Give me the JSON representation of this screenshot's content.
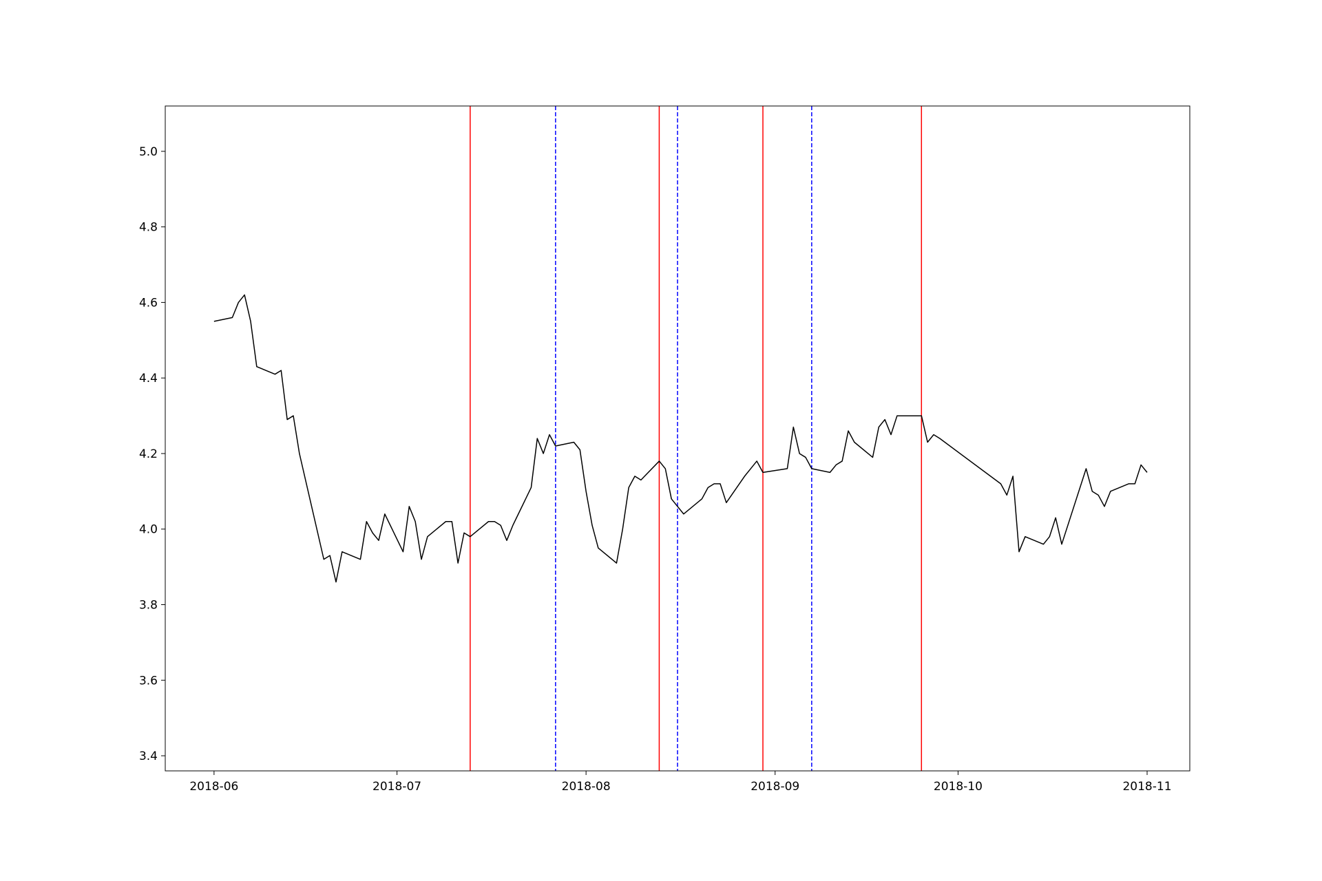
{
  "chart_data": {
    "type": "line",
    "title": "",
    "xlabel": "",
    "ylabel": "",
    "grid": false,
    "xlim": [
      "2018-05-24",
      "2018-11-08"
    ],
    "ylim": [
      3.36,
      5.12
    ],
    "x_ticks": [
      "2018-06",
      "2018-07",
      "2018-08",
      "2018-09",
      "2018-10",
      "2018-11"
    ],
    "y_ticks": [
      "3.4",
      "3.6",
      "3.8",
      "4.0",
      "4.2",
      "4.4",
      "4.6",
      "4.8",
      "5.0"
    ],
    "colors": {
      "line": "#000000",
      "solid_vline": "#ff0000",
      "dashed_vline": "#0000ff"
    },
    "series": [
      {
        "x": [
          "2018-06-01",
          "2018-06-04",
          "2018-06-05",
          "2018-06-06",
          "2018-06-07",
          "2018-06-08",
          "2018-06-11",
          "2018-06-12",
          "2018-06-13",
          "2018-06-14",
          "2018-06-15",
          "2018-06-19",
          "2018-06-20",
          "2018-06-21",
          "2018-06-22",
          "2018-06-25",
          "2018-06-26",
          "2018-06-27",
          "2018-06-28",
          "2018-06-29",
          "2018-07-02",
          "2018-07-03",
          "2018-07-04",
          "2018-07-05",
          "2018-07-06",
          "2018-07-09",
          "2018-07-10",
          "2018-07-11",
          "2018-07-12",
          "2018-07-13",
          "2018-07-16",
          "2018-07-17",
          "2018-07-18",
          "2018-07-19",
          "2018-07-20",
          "2018-07-23",
          "2018-07-24",
          "2018-07-25",
          "2018-07-26",
          "2018-07-27",
          "2018-07-30",
          "2018-07-31",
          "2018-08-01",
          "2018-08-02",
          "2018-08-03",
          "2018-08-06",
          "2018-08-07",
          "2018-08-08",
          "2018-08-09",
          "2018-08-10",
          "2018-08-13",
          "2018-08-14",
          "2018-08-15",
          "2018-08-16",
          "2018-08-17",
          "2018-08-20",
          "2018-08-21",
          "2018-08-22",
          "2018-08-23",
          "2018-08-24",
          "2018-08-27",
          "2018-08-28",
          "2018-08-29",
          "2018-08-30",
          "2018-09-03",
          "2018-09-04",
          "2018-09-05",
          "2018-09-06",
          "2018-09-07",
          "2018-09-10",
          "2018-09-11",
          "2018-09-12",
          "2018-09-13",
          "2018-09-14",
          "2018-09-17",
          "2018-09-18",
          "2018-09-19",
          "2018-09-20",
          "2018-09-21",
          "2018-09-25",
          "2018-09-26",
          "2018-09-27",
          "2018-09-28",
          "2018-10-08",
          "2018-10-09",
          "2018-10-10",
          "2018-10-11",
          "2018-10-12",
          "2018-10-15",
          "2018-10-16",
          "2018-10-17",
          "2018-10-18",
          "2018-10-22",
          "2018-10-23",
          "2018-10-24",
          "2018-10-25",
          "2018-10-26",
          "2018-10-29",
          "2018-10-30",
          "2018-10-31",
          "2018-11-01"
        ],
        "y": [
          4.55,
          4.56,
          4.6,
          4.62,
          4.55,
          4.43,
          4.41,
          4.42,
          4.29,
          4.3,
          4.2,
          3.92,
          3.93,
          3.86,
          3.94,
          3.92,
          4.02,
          3.99,
          3.97,
          4.04,
          3.94,
          4.06,
          4.02,
          3.92,
          3.98,
          4.02,
          4.02,
          3.91,
          3.99,
          3.98,
          4.02,
          4.02,
          4.01,
          3.97,
          4.01,
          4.11,
          4.24,
          4.2,
          4.25,
          4.22,
          4.23,
          4.21,
          4.1,
          4.01,
          3.95,
          3.91,
          4.0,
          4.11,
          4.14,
          4.13,
          4.18,
          4.16,
          4.08,
          4.06,
          4.04,
          4.08,
          4.11,
          4.12,
          4.12,
          4.07,
          4.14,
          4.16,
          4.18,
          4.15,
          4.16,
          4.27,
          4.2,
          4.19,
          4.16,
          4.15,
          4.17,
          4.18,
          4.26,
          4.23,
          4.19,
          4.27,
          4.29,
          4.25,
          4.3,
          4.3,
          4.23,
          4.25,
          4.24,
          4.12,
          4.09,
          4.14,
          3.94,
          3.98,
          3.96,
          3.98,
          4.03,
          3.96,
          4.16,
          4.1,
          4.09,
          4.06,
          4.1,
          4.12,
          4.12,
          4.17,
          4.15
        ]
      }
    ],
    "vlines_solid": [
      "2018-07-13",
      "2018-08-13",
      "2018-08-30",
      "2018-09-25"
    ],
    "vlines_dashed": [
      "2018-07-27",
      "2018-08-16",
      "2018-09-07"
    ]
  }
}
